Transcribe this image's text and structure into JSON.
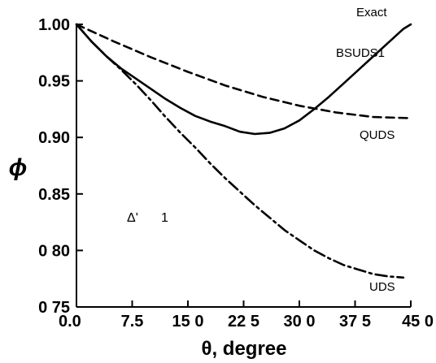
{
  "chart_data": {
    "type": "line",
    "title": "",
    "xlabel": "θ, degree",
    "ylabel": "ϕ",
    "xlim": [
      0,
      45
    ],
    "ylim": [
      0.75,
      1.0
    ],
    "x_ticks": [
      "0.0",
      "7.5",
      "15 0",
      "22 5",
      "30 0",
      "37 5",
      "45 0"
    ],
    "y_ticks": [
      "0 75",
      "0 80",
      "0.85",
      "0.90",
      "0.95",
      "1.00"
    ],
    "grid": false,
    "series": [
      {
        "name": "BSUDS1",
        "style": "solid",
        "x": [
          0,
          2,
          4,
          6,
          8,
          10,
          12,
          14,
          16,
          18,
          20,
          22,
          24,
          26,
          28,
          30,
          32,
          34,
          36,
          38,
          40,
          42,
          44,
          45
        ],
        "y": [
          1.0,
          0.985,
          0.972,
          0.961,
          0.952,
          0.943,
          0.934,
          0.926,
          0.919,
          0.914,
          0.91,
          0.905,
          0.903,
          0.904,
          0.908,
          0.915,
          0.925,
          0.936,
          0.948,
          0.96,
          0.972,
          0.984,
          0.996,
          1.0
        ]
      },
      {
        "name": "QUDS",
        "style": "dashed",
        "x": [
          0,
          5,
          10,
          15,
          20,
          25,
          30,
          35,
          40,
          45
        ],
        "y": [
          1.0,
          0.985,
          0.971,
          0.958,
          0.946,
          0.936,
          0.928,
          0.922,
          0.918,
          0.917
        ]
      },
      {
        "name": "UDS",
        "style": "dashdot",
        "x": [
          0,
          2,
          4,
          6,
          8,
          10,
          12,
          14,
          16,
          18,
          20,
          22,
          24,
          26,
          28,
          30,
          32,
          34,
          36,
          38,
          40,
          42,
          44
        ],
        "y": [
          1.0,
          0.985,
          0.972,
          0.96,
          0.947,
          0.933,
          0.918,
          0.904,
          0.891,
          0.877,
          0.864,
          0.852,
          0.84,
          0.829,
          0.818,
          0.809,
          0.8,
          0.793,
          0.787,
          0.783,
          0.779,
          0.777,
          0.776
        ]
      }
    ],
    "annotations": [
      {
        "text": "Exact",
        "size": 15
      },
      {
        "text": "BSUDS1",
        "size": 15
      },
      {
        "text": "QUDS",
        "size": 15
      },
      {
        "text": "UDS",
        "size": 15
      },
      {
        "text": "Δ'",
        "size": 16
      },
      {
        "text": "1",
        "size": 16
      }
    ]
  }
}
